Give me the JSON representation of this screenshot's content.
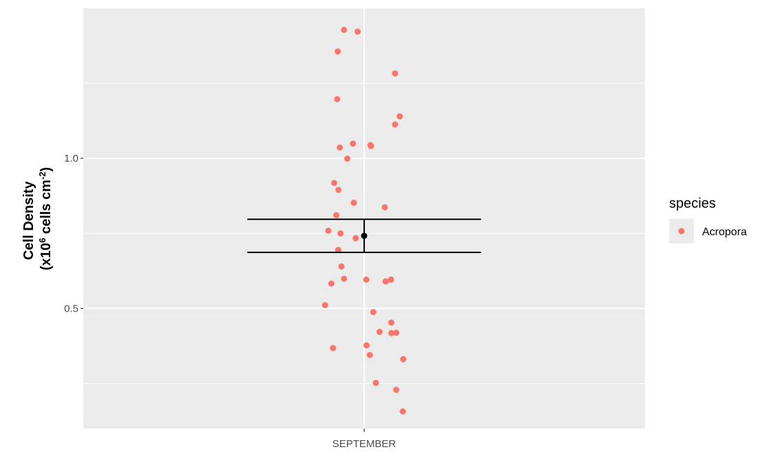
{
  "chart_data": {
    "type": "scatter",
    "categories": [
      "SEPTEMBER"
    ],
    "ylabel_line1": "Cell Density",
    "ylabel_line2": {
      "prefix": "(x10",
      "sup1": "6",
      "middle": " cells cm",
      "sup2": "-2",
      "suffix": ")"
    },
    "ylim": [
      0.1,
      1.5
    ],
    "y_ticks": [
      {
        "value": 0.5,
        "label": "0.5"
      },
      {
        "value": 1.0,
        "label": "1.0"
      }
    ],
    "y_minor_gridlines": [
      0.25,
      0.75,
      1.25
    ],
    "grid": true,
    "legend": {
      "title": "species",
      "placement": "right",
      "entries": [
        {
          "label": "Acropora",
          "color": "#F8766D"
        }
      ]
    },
    "series": [
      {
        "name": "Acropora",
        "color": "#F8766D",
        "points": [
          {
            "x": -0.086,
            "y": 1.428
          },
          {
            "x": -0.028,
            "y": 1.422
          },
          {
            "x": -0.113,
            "y": 1.356
          },
          {
            "x": 0.132,
            "y": 1.283
          },
          {
            "x": -0.115,
            "y": 1.197
          },
          {
            "x": 0.152,
            "y": 1.14
          },
          {
            "x": 0.132,
            "y": 1.113
          },
          {
            "x": -0.048,
            "y": 1.049
          },
          {
            "x": 0.027,
            "y": 1.044
          },
          {
            "x": 0.029,
            "y": 1.041
          },
          {
            "x": -0.104,
            "y": 1.036
          },
          {
            "x": -0.072,
            "y": 0.999
          },
          {
            "x": -0.128,
            "y": 0.918
          },
          {
            "x": -0.11,
            "y": 0.895
          },
          {
            "x": -0.044,
            "y": 0.852
          },
          {
            "x": 0.088,
            "y": 0.837
          },
          {
            "x": -0.119,
            "y": 0.811
          },
          {
            "x": -0.153,
            "y": 0.759
          },
          {
            "x": -0.101,
            "y": 0.75
          },
          {
            "x": -0.036,
            "y": 0.734
          },
          {
            "x": -0.111,
            "y": 0.695
          },
          {
            "x": -0.097,
            "y": 0.64
          },
          {
            "x": -0.086,
            "y": 0.599
          },
          {
            "x": 0.009,
            "y": 0.596
          },
          {
            "x": 0.115,
            "y": 0.596
          },
          {
            "x": 0.092,
            "y": 0.59
          },
          {
            "x": -0.14,
            "y": 0.583
          },
          {
            "x": -0.167,
            "y": 0.511
          },
          {
            "x": 0.039,
            "y": 0.488
          },
          {
            "x": 0.116,
            "y": 0.453
          },
          {
            "x": 0.066,
            "y": 0.422
          },
          {
            "x": 0.137,
            "y": 0.419
          },
          {
            "x": 0.116,
            "y": 0.418
          },
          {
            "x": 0.01,
            "y": 0.377
          },
          {
            "x": -0.133,
            "y": 0.368
          },
          {
            "x": 0.024,
            "y": 0.345
          },
          {
            "x": 0.167,
            "y": 0.331
          },
          {
            "x": 0.05,
            "y": 0.252
          },
          {
            "x": 0.137,
            "y": 0.229
          },
          {
            "x": 0.165,
            "y": 0.157
          }
        ]
      }
    ],
    "summary": {
      "mean": 0.742,
      "lower": 0.687,
      "upper": 0.797,
      "color": "#000000"
    }
  }
}
